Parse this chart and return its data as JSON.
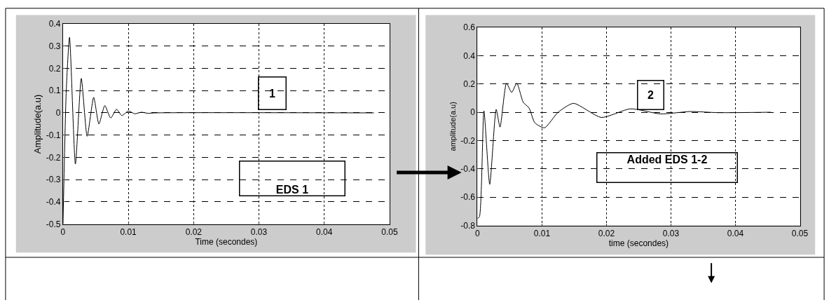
{
  "chart_data": [
    {
      "type": "line",
      "xlabel": "Time (secondes)",
      "ylabel": "Amplitude(a.u)",
      "xlim": [
        0,
        0.05
      ],
      "ylim": [
        -0.5,
        0.4
      ],
      "xticks": [
        0,
        0.01,
        0.02,
        0.03,
        0.04,
        0.05
      ],
      "yticks": [
        -0.5,
        -0.4,
        -0.3,
        -0.2,
        -0.1,
        0,
        0.1,
        0.2,
        0.3,
        0.4
      ],
      "grid": true,
      "series": [
        {
          "color": "#000000",
          "x": [
            0,
            0.0005,
            0.001,
            0.0019,
            0.0028,
            0.0037,
            0.0047,
            0.0055,
            0.0064,
            0.0073,
            0.0082,
            0.009,
            0.01,
            0.011,
            0.012,
            0.013,
            0.014,
            0.0476
          ],
          "values": [
            -0.5,
            0.1,
            0.34,
            -0.23,
            0.155,
            -0.105,
            0.07,
            -0.05,
            0.033,
            -0.023,
            0.016,
            -0.012,
            0.008,
            -0.004,
            0.003,
            -0.002,
            0,
            0
          ]
        }
      ],
      "annotations": [
        "1",
        "EDS 1"
      ]
    },
    {
      "type": "line",
      "xlabel": "time (secondes)",
      "ylabel": "amplitude(a.u)",
      "xlim": [
        0,
        0.05
      ],
      "ylim": [
        -0.8,
        0.6
      ],
      "xticks": [
        0,
        0.01,
        0.02,
        0.03,
        0.04,
        0.05
      ],
      "yticks": [
        -0.8,
        -0.6,
        -0.4,
        -0.2,
        0,
        0.2,
        0.4,
        0.6
      ],
      "grid": true,
      "series": [
        {
          "color": "#000000",
          "x": [
            0,
            0.0003,
            0.001,
            0.0019,
            0.0029,
            0.0035,
            0.0045,
            0.0053,
            0.0061,
            0.0071,
            0.008,
            0.0089,
            0.0104,
            0.0125,
            0.0149,
            0.0192,
            0.0237,
            0.0284,
            0.033,
            0.0373,
            0.0455
          ],
          "values": [
            -0.75,
            -0.74,
            0.01,
            -0.51,
            0.02,
            -0.105,
            0.205,
            0.14,
            0.205,
            0.07,
            0.03,
            -0.075,
            -0.11,
            0,
            0.063,
            -0.037,
            0.024,
            -0.012,
            0.005,
            -0.003,
            0
          ]
        }
      ],
      "annotations": [
        "2",
        "Added EDS 1-2"
      ]
    }
  ]
}
